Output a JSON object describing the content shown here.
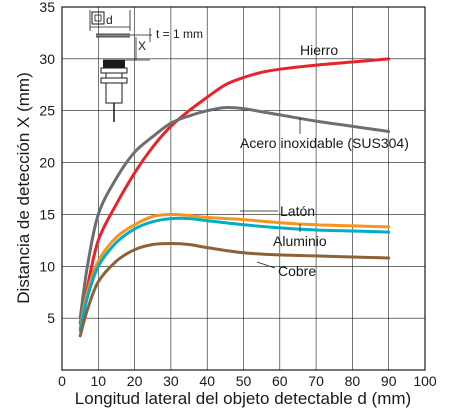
{
  "chart_data": {
    "type": "line",
    "xlabel": "Longitud lateral del objeto detectable d (mm)",
    "ylabel": "Distancia de detección X (mm)",
    "xlim": [
      0,
      100
    ],
    "ylim": [
      0,
      35
    ],
    "x_ticks": [
      "0",
      "10",
      "20",
      "30",
      "40",
      "50",
      "60",
      "70",
      "80",
      "90",
      "100"
    ],
    "y_ticks": [
      "5",
      "10",
      "15",
      "20",
      "25",
      "30",
      "35"
    ],
    "grid": true,
    "legend": "inline labels beside curves",
    "series": [
      {
        "name": "Hierro",
        "color": "#e8232a",
        "x": [
          5,
          7,
          10,
          15,
          20,
          25,
          30,
          35,
          40,
          45,
          50,
          55,
          60,
          70,
          80,
          90
        ],
        "y": [
          4.5,
          8.0,
          12.5,
          16.0,
          19.0,
          21.5,
          23.5,
          25.0,
          26.3,
          27.5,
          28.2,
          28.7,
          29.0,
          29.4,
          29.7,
          30.0
        ]
      },
      {
        "name": "Acero inoxidable (SUS304)",
        "color": "#6d6e71",
        "x": [
          5,
          7,
          10,
          15,
          20,
          25,
          30,
          35,
          40,
          45,
          50,
          55,
          60,
          70,
          80,
          90
        ],
        "y": [
          5.0,
          10.0,
          15.0,
          18.5,
          21.0,
          22.5,
          23.8,
          24.5,
          25.0,
          25.3,
          25.2,
          24.9,
          24.6,
          24.0,
          23.5,
          23.0
        ]
      },
      {
        "name": "Latón",
        "color": "#f7941d",
        "x": [
          5,
          7,
          10,
          15,
          20,
          25,
          30,
          35,
          40,
          50,
          60,
          70,
          80,
          90
        ],
        "y": [
          4.0,
          7.5,
          10.5,
          12.8,
          14.0,
          14.8,
          15.0,
          14.9,
          14.7,
          14.5,
          14.2,
          14.0,
          13.9,
          13.8
        ]
      },
      {
        "name": "Aluminio",
        "color": "#00aec7",
        "x": [
          5,
          7,
          10,
          15,
          20,
          25,
          30,
          35,
          40,
          50,
          60,
          70,
          80,
          90
        ],
        "y": [
          3.8,
          7.0,
          10.0,
          12.3,
          13.6,
          14.3,
          14.6,
          14.6,
          14.4,
          14.0,
          13.7,
          13.5,
          13.4,
          13.3
        ]
      },
      {
        "name": "Cobre",
        "color": "#8c6239",
        "x": [
          5,
          7,
          10,
          15,
          20,
          25,
          30,
          35,
          40,
          50,
          60,
          70,
          80,
          90
        ],
        "y": [
          3.3,
          5.8,
          8.5,
          10.5,
          11.6,
          12.1,
          12.2,
          12.1,
          11.8,
          11.3,
          11.1,
          11.0,
          10.9,
          10.8
        ]
      }
    ],
    "annotations": {
      "inset_d": "d",
      "inset_x": "X",
      "inset_t": "t = 1 mm"
    }
  }
}
